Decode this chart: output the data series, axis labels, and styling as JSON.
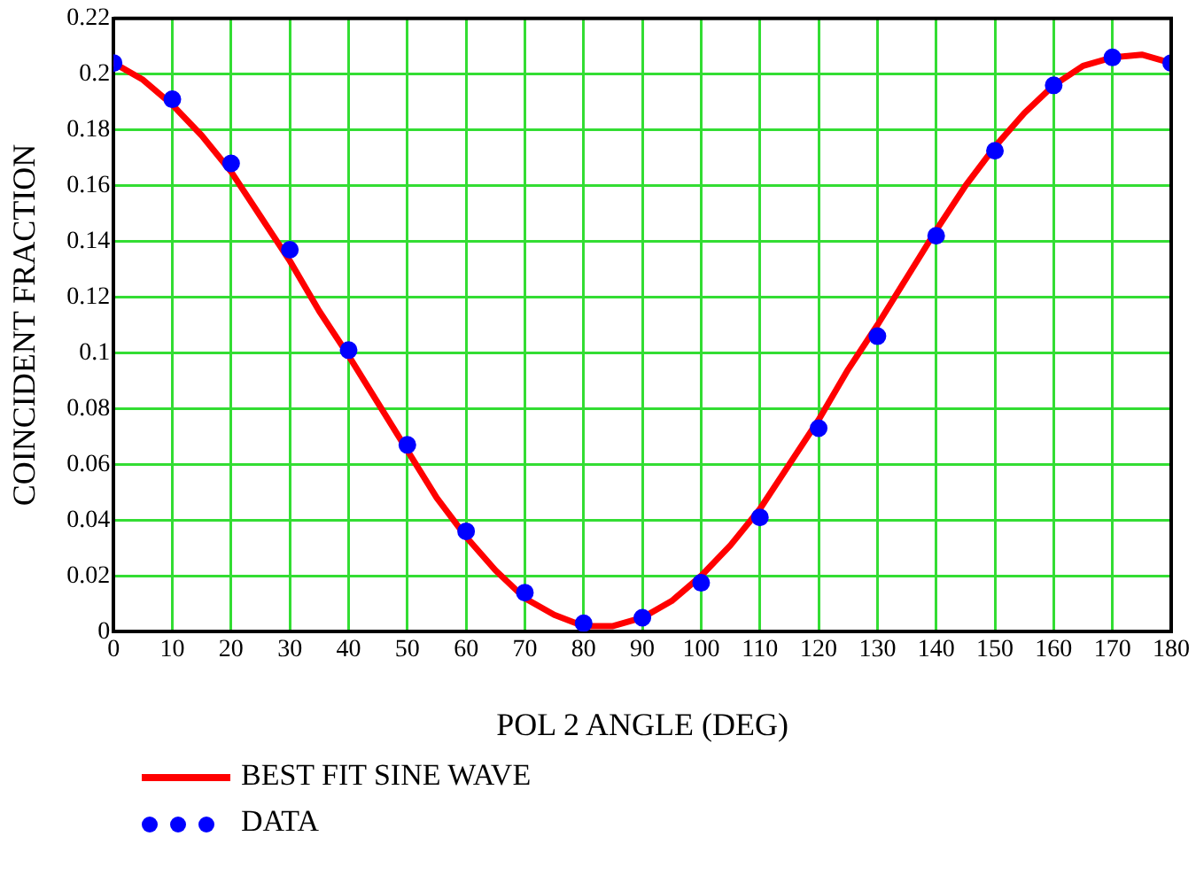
{
  "chart_data": {
    "type": "line",
    "xlabel": "POL 2 ANGLE (DEG)",
    "ylabel": "COINCIDENT FRACTION",
    "xlim": [
      0,
      180
    ],
    "xticks": [
      0,
      10,
      20,
      30,
      40,
      50,
      60,
      70,
      80,
      90,
      100,
      110,
      120,
      130,
      140,
      150,
      160,
      170,
      180
    ],
    "ylim": [
      0,
      0.22
    ],
    "yticks": [
      0,
      0.02,
      0.04,
      0.06,
      0.08,
      0.1,
      0.12,
      0.14,
      0.16,
      0.18,
      0.2,
      0.22
    ],
    "grid": true,
    "legend": "bottom left",
    "series": [
      {
        "name": "BEST FIT SINE WAVE",
        "type": "line",
        "marker": "none",
        "line_style": "solid",
        "color": "#ff0000",
        "x": [
          0,
          5,
          10,
          15,
          20,
          25,
          30,
          35,
          40,
          45,
          50,
          55,
          60,
          65,
          70,
          75,
          80,
          85,
          90,
          95,
          100,
          105,
          110,
          115,
          120,
          125,
          130,
          135,
          140,
          145,
          150,
          155,
          160,
          165,
          170,
          175,
          180
        ],
        "values": [
          0.204,
          0.198,
          0.189,
          0.178,
          0.165,
          0.149,
          0.133,
          0.115,
          0.099,
          0.082,
          0.065,
          0.048,
          0.034,
          0.022,
          0.012,
          0.006,
          0.002,
          0.002,
          0.005,
          0.011,
          0.02,
          0.031,
          0.044,
          0.06,
          0.076,
          0.094,
          0.11,
          0.127,
          0.144,
          0.16,
          0.174,
          0.186,
          0.196,
          0.203,
          0.206,
          0.207,
          0.204
        ]
      },
      {
        "name": "DATA",
        "type": "scatter",
        "marker": "circle",
        "color": "#0000ff",
        "x": [
          0,
          10,
          20,
          30,
          40,
          50,
          60,
          70,
          80,
          90,
          100,
          110,
          120,
          130,
          140,
          150,
          160,
          170,
          180
        ],
        "values": [
          0.204,
          0.191,
          0.168,
          0.137,
          0.101,
          0.067,
          0.036,
          0.014,
          0.003,
          0.005,
          0.0175,
          0.041,
          0.073,
          0.106,
          0.142,
          0.1725,
          0.196,
          0.206,
          0.204
        ]
      }
    ]
  }
}
